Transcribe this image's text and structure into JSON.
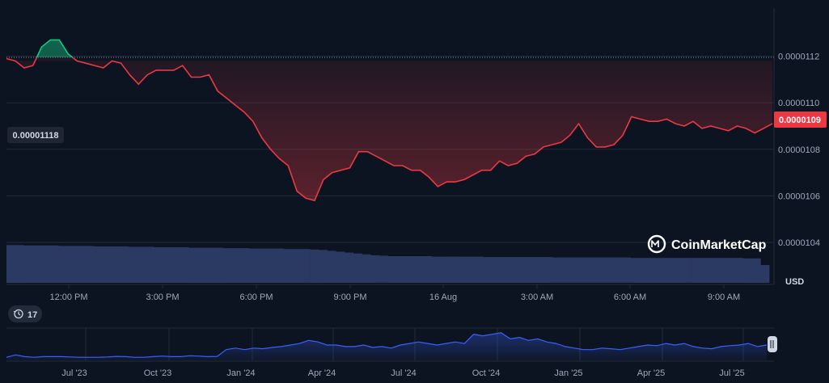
{
  "colors": {
    "background": "#0d1421",
    "up": "#16c784",
    "down": "#ea3943",
    "volume": "#2b3a63",
    "navigator": "#3861fb",
    "grid": "#222b3a",
    "axis_text": "#a1a7bb"
  },
  "brand": {
    "name": "CoinMarketCap",
    "icon": "coinmarketcap-logo-icon"
  },
  "badges": {
    "reference_price": "0.00001118",
    "current_price": "0.0000109",
    "history_count": "17",
    "history_icon": "history-clock-icon"
  },
  "unit_label": "USD",
  "chart_data": [
    {
      "type": "area",
      "x_ticks": [
        "12:00 PM",
        "3:00 PM",
        "6:00 PM",
        "9:00 PM",
        "16 Aug",
        "3:00 AM",
        "6:00 AM",
        "9:00 AM"
      ],
      "y_ticks": [
        "0.0000112",
        "0.0000110",
        "0.0000108",
        "0.0000106",
        "0.0000104"
      ],
      "ylim": [
        1.04e-05,
        1.14e-05
      ],
      "baseline": 1.118e-05,
      "grid": true,
      "series": [
        {
          "values": [
            1.119e-05,
            1.118e-05,
            1.115e-05,
            1.116e-05,
            1.124e-05,
            1.127e-05,
            1.127e-05,
            1.121e-05,
            1.118e-05,
            1.117e-05,
            1.116e-05,
            1.115e-05,
            1.118e-05,
            1.117e-05,
            1.112e-05,
            1.108e-05,
            1.112e-05,
            1.114e-05,
            1.114e-05,
            1.114e-05,
            1.116e-05,
            1.111e-05,
            1.111e-05,
            1.112e-05,
            1.105e-05,
            1.102e-05,
            1.099e-05,
            1.096e-05,
            1.092e-05,
            1.085e-05,
            1.08e-05,
            1.076e-05,
            1.073e-05,
            1.062e-05,
            1.059e-05,
            1.058e-05,
            1.067e-05,
            1.07e-05,
            1.071e-05,
            1.072e-05,
            1.079e-05,
            1.079e-05,
            1.077e-05,
            1.075e-05,
            1.073e-05,
            1.073e-05,
            1.071e-05,
            1.071e-05,
            1.068e-05,
            1.064e-05,
            1.066e-05,
            1.066e-05,
            1.067e-05,
            1.069e-05,
            1.071e-05,
            1.071e-05,
            1.075e-05,
            1.073e-05,
            1.074e-05,
            1.077e-05,
            1.078e-05,
            1.081e-05,
            1.082e-05,
            1.083e-05,
            1.086e-05,
            1.091e-05,
            1.085e-05,
            1.081e-05,
            1.081e-05,
            1.082e-05,
            1.086e-05,
            1.094e-05,
            1.093e-05,
            1.092e-05,
            1.092e-05,
            1.093e-05,
            1.091e-05,
            1.09e-05,
            1.092e-05,
            1.089e-05,
            1.09e-05,
            1.089e-05,
            1.088e-05,
            1.09e-05,
            1.089e-05,
            1.087e-05,
            1.089e-05,
            1.091e-05
          ]
        }
      ]
    },
    {
      "type": "bar",
      "name": "volume",
      "values": [
        0.85,
        0.85,
        0.84,
        0.84,
        0.84,
        0.84,
        0.83,
        0.83,
        0.83,
        0.83,
        0.82,
        0.82,
        0.82,
        0.82,
        0.81,
        0.81,
        0.81,
        0.8,
        0.8,
        0.8,
        0.8,
        0.79,
        0.79,
        0.79,
        0.79,
        0.78,
        0.78,
        0.78,
        0.77,
        0.77,
        0.77,
        0.77,
        0.76,
        0.76,
        0.76,
        0.75,
        0.74,
        0.72,
        0.7,
        0.68,
        0.66,
        0.64,
        0.62,
        0.61,
        0.6,
        0.6,
        0.6,
        0.6,
        0.6,
        0.59,
        0.59,
        0.59,
        0.59,
        0.59,
        0.59,
        0.58,
        0.58,
        0.58,
        0.58,
        0.58,
        0.58,
        0.58,
        0.58,
        0.57,
        0.57,
        0.57,
        0.57,
        0.57,
        0.57,
        0.57,
        0.57,
        0.57,
        0.56,
        0.56,
        0.56,
        0.56,
        0.56,
        0.56,
        0.56,
        0.56,
        0.56,
        0.56,
        0.56,
        0.56,
        0.56,
        0.55,
        0.55,
        0.4
      ]
    },
    {
      "type": "area",
      "name": "navigator",
      "x_ticks": [
        "Jul '23",
        "Oct '23",
        "Jan '24",
        "Apr '24",
        "Jul '24",
        "Oct '24",
        "Jan '25",
        "Apr '25",
        "Jul '25"
      ],
      "values": [
        0.1,
        0.18,
        0.12,
        0.1,
        0.12,
        0.12,
        0.12,
        0.11,
        0.1,
        0.1,
        0.1,
        0.11,
        0.13,
        0.12,
        0.1,
        0.1,
        0.12,
        0.14,
        0.12,
        0.12,
        0.15,
        0.14,
        0.12,
        0.13,
        0.35,
        0.4,
        0.35,
        0.4,
        0.38,
        0.42,
        0.45,
        0.5,
        0.55,
        0.65,
        0.6,
        0.5,
        0.5,
        0.45,
        0.45,
        0.5,
        0.42,
        0.45,
        0.4,
        0.5,
        0.55,
        0.6,
        0.55,
        0.5,
        0.55,
        0.6,
        0.55,
        0.85,
        0.8,
        0.85,
        0.9,
        0.7,
        0.75,
        0.65,
        0.7,
        0.6,
        0.55,
        0.45,
        0.4,
        0.35,
        0.35,
        0.4,
        0.38,
        0.35,
        0.4,
        0.45,
        0.5,
        0.48,
        0.55,
        0.5,
        0.55,
        0.45,
        0.4,
        0.38,
        0.45,
        0.48,
        0.5,
        0.55,
        0.45,
        0.5
      ]
    }
  ]
}
